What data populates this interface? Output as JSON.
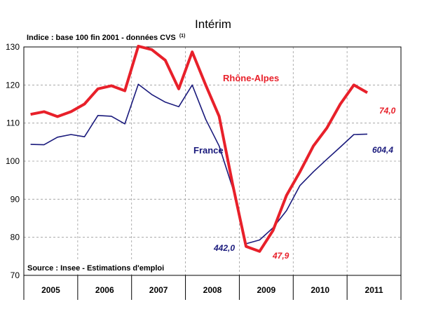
{
  "chart_data": {
    "type": "line",
    "title": "Intérim",
    "subtitle": "Indice : base 100 fin 2001 - données CVS",
    "subtitle_note": "(1)",
    "source": "Source : Insee - Estimations d'emploi",
    "xlabel": "",
    "ylabel": "",
    "ylim": [
      70,
      130
    ],
    "yticks": [
      70,
      80,
      90,
      100,
      110,
      120,
      130
    ],
    "grid": true,
    "year_labels": [
      "2005",
      "2006",
      "2007",
      "2008",
      "2009",
      "2010",
      "2011"
    ],
    "x": [
      "2005 T1",
      "2005 T2",
      "2005 T3",
      "2005 T4",
      "2006 T1",
      "2006 T2",
      "2006 T3",
      "2006 T4",
      "2007 T1",
      "2007 T2",
      "2007 T3",
      "2007 T4",
      "2008 T1",
      "2008 T2",
      "2008 T3",
      "2008 T4",
      "2009 T1",
      "2009 T2",
      "2009 T3",
      "2009 T4",
      "2010 T1",
      "2010 T2",
      "2010 T3",
      "2010 T4",
      "2011 T1",
      "2011 T2"
    ],
    "series": [
      {
        "name": "Rhône-Alpes",
        "color": "#e8202a",
        "values": [
          112.3,
          113.0,
          111.7,
          113.0,
          115.0,
          119.0,
          119.8,
          118.5,
          130.2,
          129.3,
          126.5,
          119.0,
          128.7,
          120.0,
          111.8,
          94.0,
          77.6,
          76.3,
          81.8,
          91.0,
          97.2,
          104.0,
          108.7,
          115.0,
          120.0,
          118.0
        ],
        "end_label": "74,0",
        "trough_label": "47,9"
      },
      {
        "name": "France",
        "color": "#1a1a7c",
        "values": [
          104.4,
          104.3,
          106.3,
          107.0,
          106.4,
          112.0,
          111.8,
          109.8,
          120.2,
          117.5,
          115.5,
          114.3,
          120.0,
          111.0,
          104.0,
          93.0,
          78.3,
          79.3,
          82.5,
          87.0,
          93.6,
          97.2,
          100.5,
          103.7,
          107.0,
          107.1
        ],
        "end_label": "604,4",
        "trough_label": "442,0"
      }
    ]
  }
}
